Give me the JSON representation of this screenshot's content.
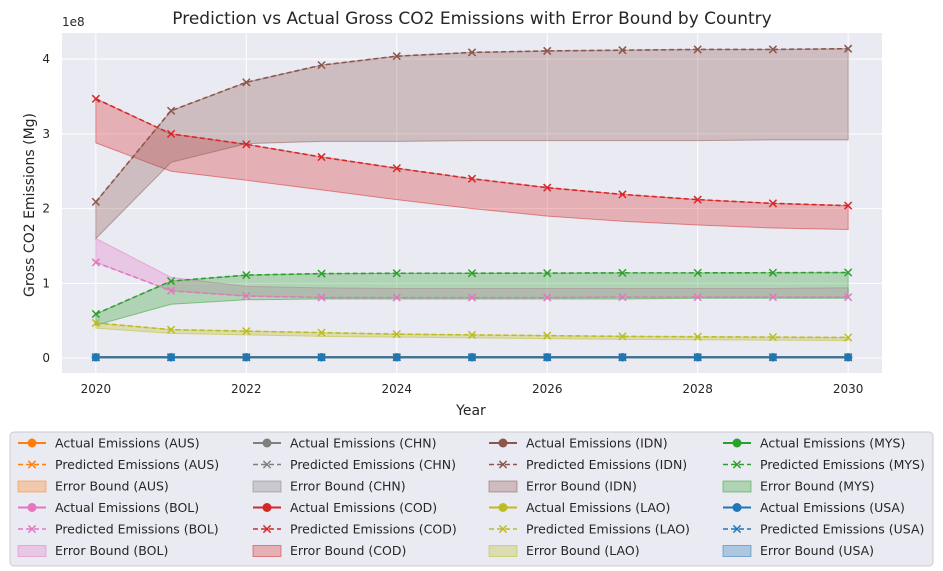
{
  "chart_data": {
    "type": "line",
    "title": "Prediction vs Actual Gross CO2 Emissions with Error Bound by Country",
    "xlabel": "Year",
    "ylabel": "Gross CO2 Emissions (Mg)",
    "y_scale_label": "1e8",
    "xlim": [
      2019.55,
      2030.45
    ],
    "ylim": [
      -0.2,
      4.35
    ],
    "y_unit_multiplier": 100000000,
    "x_ticks": [
      2020,
      2022,
      2024,
      2026,
      2028,
      2030
    ],
    "y_ticks": [
      0,
      1,
      2,
      3,
      4
    ],
    "grid": true,
    "legend_placement": "bottom, outside plot, 4 columns",
    "x": [
      2020,
      2021,
      2022,
      2023,
      2024,
      2025,
      2026,
      2027,
      2028,
      2029,
      2030
    ],
    "countries": [
      {
        "code": "AUS",
        "color": "#ff7f0e",
        "actual": [
          0.01,
          0.01,
          0.01,
          0.01,
          0.01,
          0.01,
          0.01,
          0.01,
          0.01,
          0.01,
          0.01
        ],
        "predicted": [
          0.01,
          0.01,
          0.01,
          0.01,
          0.01,
          0.01,
          0.01,
          0.01,
          0.01,
          0.01,
          0.01
        ],
        "bound_low": [
          0.0,
          0.0,
          0.0,
          0.0,
          0.0,
          0.0,
          0.0,
          0.0,
          0.0,
          0.0,
          0.0
        ],
        "bound_high": [
          0.02,
          0.02,
          0.02,
          0.02,
          0.02,
          0.02,
          0.02,
          0.02,
          0.02,
          0.02,
          0.02
        ]
      },
      {
        "code": "BOL",
        "color": "#e377c2",
        "actual": [],
        "predicted": [
          1.28,
          0.9,
          0.83,
          0.81,
          0.81,
          0.81,
          0.81,
          0.815,
          0.815,
          0.815,
          0.815
        ],
        "bound_low": [
          1.28,
          0.9,
          0.83,
          0.81,
          0.81,
          0.81,
          0.81,
          0.815,
          0.815,
          0.815,
          0.815
        ],
        "bound_high": [
          1.6,
          1.08,
          0.96,
          0.94,
          0.93,
          0.93,
          0.93,
          0.93,
          0.93,
          0.93,
          0.94
        ]
      },
      {
        "code": "CHN",
        "color": "#7f7f7f",
        "actual": [],
        "predicted": [],
        "bound_low": [
          0.0,
          0.0,
          0.0,
          0.0,
          0.0,
          0.0,
          0.0,
          0.0,
          0.0,
          0.0,
          0.0
        ],
        "bound_high": [
          0.02,
          0.02,
          0.02,
          0.02,
          0.02,
          0.02,
          0.02,
          0.02,
          0.02,
          0.02,
          0.02
        ]
      },
      {
        "code": "COD",
        "color": "#d62728",
        "actual": [],
        "predicted": [
          3.47,
          3.0,
          2.86,
          2.69,
          2.54,
          2.4,
          2.28,
          2.19,
          2.12,
          2.07,
          2.04
        ],
        "bound_low": [
          2.88,
          2.5,
          2.38,
          2.25,
          2.12,
          2.0,
          1.9,
          1.83,
          1.78,
          1.74,
          1.72
        ],
        "bound_high": [
          3.47,
          3.0,
          2.86,
          2.69,
          2.54,
          2.4,
          2.28,
          2.19,
          2.12,
          2.07,
          2.04
        ]
      },
      {
        "code": "IDN",
        "color": "#8c564b",
        "actual": [],
        "predicted": [
          2.09,
          3.31,
          3.69,
          3.92,
          4.04,
          4.09,
          4.11,
          4.12,
          4.13,
          4.13,
          4.14
        ],
        "bound_low": [
          1.6,
          2.62,
          2.87,
          2.9,
          2.9,
          2.91,
          2.91,
          2.91,
          2.91,
          2.92,
          2.92
        ],
        "bound_high": [
          2.09,
          3.31,
          3.69,
          3.92,
          4.04,
          4.09,
          4.11,
          4.12,
          4.13,
          4.13,
          4.14
        ]
      },
      {
        "code": "LAO",
        "color": "#bcbd22",
        "actual": [],
        "predicted": [
          0.47,
          0.38,
          0.36,
          0.34,
          0.32,
          0.31,
          0.3,
          0.29,
          0.285,
          0.28,
          0.275
        ],
        "bound_low": [
          0.4,
          0.33,
          0.31,
          0.29,
          0.28,
          0.27,
          0.26,
          0.25,
          0.245,
          0.24,
          0.235
        ],
        "bound_high": [
          0.47,
          0.38,
          0.36,
          0.34,
          0.32,
          0.31,
          0.3,
          0.29,
          0.285,
          0.28,
          0.275
        ]
      },
      {
        "code": "MYS",
        "color": "#2ca02c",
        "actual": [],
        "predicted": [
          0.59,
          1.03,
          1.11,
          1.13,
          1.135,
          1.135,
          1.137,
          1.14,
          1.14,
          1.142,
          1.145
        ],
        "bound_low": [
          0.44,
          0.72,
          0.78,
          0.79,
          0.79,
          0.79,
          0.79,
          0.79,
          0.8,
          0.8,
          0.8
        ],
        "bound_high": [
          0.59,
          1.03,
          1.11,
          1.13,
          1.135,
          1.135,
          1.137,
          1.14,
          1.14,
          1.142,
          1.145
        ]
      },
      {
        "code": "USA",
        "color": "#1f77b4",
        "actual": [
          0.01,
          0.01,
          0.01,
          0.01,
          0.01,
          0.01,
          0.01,
          0.01,
          0.01,
          0.01,
          0.01
        ],
        "predicted": [
          0.01,
          0.01,
          0.01,
          0.01,
          0.01,
          0.01,
          0.01,
          0.01,
          0.01,
          0.01,
          0.01
        ],
        "bound_low": [
          0.0,
          0.0,
          0.0,
          0.0,
          0.0,
          0.0,
          0.0,
          0.0,
          0.0,
          0.0,
          0.0
        ],
        "bound_high": [
          0.02,
          0.02,
          0.02,
          0.02,
          0.02,
          0.02,
          0.02,
          0.02,
          0.02,
          0.02,
          0.02
        ]
      }
    ],
    "legend_entries": [
      {
        "label": "Actual Emissions (AUS)",
        "kind": "actual",
        "color": "#ff7f0e"
      },
      {
        "label": "Predicted Emissions (AUS)",
        "kind": "predicted",
        "color": "#ff7f0e"
      },
      {
        "label": "Error Bound (AUS)",
        "kind": "bound",
        "color": "#ff7f0e"
      },
      {
        "label": "Actual Emissions (BOL)",
        "kind": "actual",
        "color": "#e377c2"
      },
      {
        "label": "Predicted Emissions (BOL)",
        "kind": "predicted",
        "color": "#e377c2"
      },
      {
        "label": "Error Bound (BOL)",
        "kind": "bound",
        "color": "#e377c2"
      },
      {
        "label": "Actual Emissions (CHN)",
        "kind": "actual",
        "color": "#7f7f7f"
      },
      {
        "label": "Predicted Emissions (CHN)",
        "kind": "predicted",
        "color": "#7f7f7f"
      },
      {
        "label": "Error Bound (CHN)",
        "kind": "bound",
        "color": "#7f7f7f"
      },
      {
        "label": "Actual Emissions (COD)",
        "kind": "actual",
        "color": "#d62728"
      },
      {
        "label": "Predicted Emissions (COD)",
        "kind": "predicted",
        "color": "#d62728"
      },
      {
        "label": "Error Bound (COD)",
        "kind": "bound",
        "color": "#d62728"
      },
      {
        "label": "Actual Emissions (IDN)",
        "kind": "actual",
        "color": "#8c564b"
      },
      {
        "label": "Predicted Emissions (IDN)",
        "kind": "predicted",
        "color": "#8c564b"
      },
      {
        "label": "Error Bound (IDN)",
        "kind": "bound",
        "color": "#8c564b"
      },
      {
        "label": "Actual Emissions (LAO)",
        "kind": "actual",
        "color": "#bcbd22"
      },
      {
        "label": "Predicted Emissions (LAO)",
        "kind": "predicted",
        "color": "#bcbd22"
      },
      {
        "label": "Error Bound (LAO)",
        "kind": "bound",
        "color": "#bcbd22"
      },
      {
        "label": "Actual Emissions (MYS)",
        "kind": "actual",
        "color": "#2ca02c"
      },
      {
        "label": "Predicted Emissions (MYS)",
        "kind": "predicted",
        "color": "#2ca02c"
      },
      {
        "label": "Error Bound (MYS)",
        "kind": "bound",
        "color": "#2ca02c"
      },
      {
        "label": "Actual Emissions (USA)",
        "kind": "actual",
        "color": "#1f77b4"
      },
      {
        "label": "Predicted Emissions (USA)",
        "kind": "predicted",
        "color": "#1f77b4"
      },
      {
        "label": "Error Bound (USA)",
        "kind": "bound",
        "color": "#1f77b4"
      }
    ],
    "style": {
      "plot_background": "#eaeaf2",
      "grid_color": "#ffffff",
      "text_color": "#262626",
      "legend_border": "#cccccc",
      "legend_background": "#eaeaf2"
    }
  }
}
